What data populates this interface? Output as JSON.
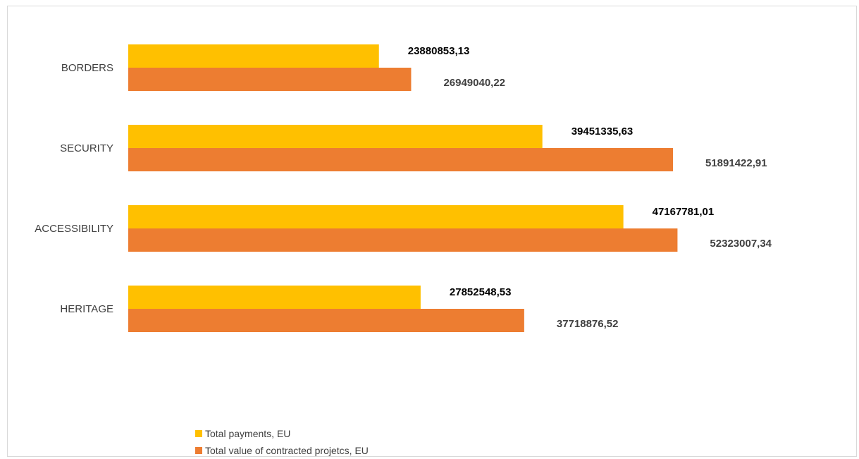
{
  "chart_data": {
    "type": "bar",
    "orientation": "horizontal",
    "categories": [
      "BORDERS",
      "SECURITY",
      "ACCESSIBILITY",
      "HERITAGE"
    ],
    "series": [
      {
        "name": "Total payments, EU",
        "color": "#ffc000",
        "values": [
          23880853.13,
          39451335.63,
          47167781.01,
          27852548.53
        ],
        "labels": [
          "23880853,13",
          "39451335,63",
          "47167781,01",
          "27852548,53"
        ]
      },
      {
        "name": "Total value of contracted projetcs, EU",
        "color": "#ed7d31",
        "values": [
          26949040.22,
          51891422.91,
          52323007.34,
          37718876.52
        ],
        "labels": [
          "26949040,22",
          "51891422,91",
          "52323007,34",
          "37718876,52"
        ]
      }
    ],
    "xlim": [
      0,
      58000000
    ],
    "grid": false,
    "legend_position": "bottom-left"
  }
}
